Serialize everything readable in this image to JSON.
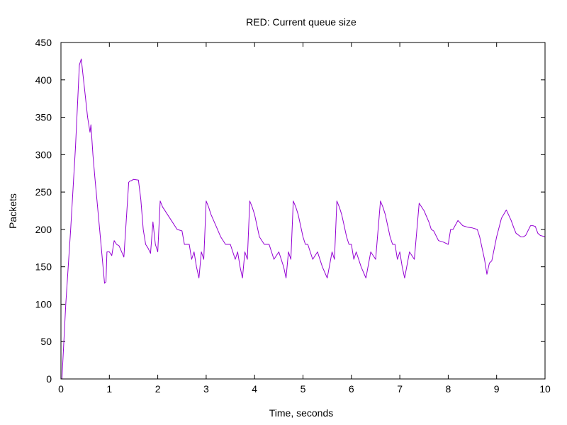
{
  "chart_data": {
    "type": "line",
    "title": "RED: Current queue size",
    "xlabel": "Time, seconds",
    "ylabel": "Packets",
    "xlim": [
      0,
      10
    ],
    "ylim": [
      0,
      450
    ],
    "x_ticks": [
      0,
      1,
      2,
      3,
      4,
      5,
      6,
      7,
      8,
      9,
      10
    ],
    "y_ticks": [
      0,
      50,
      100,
      150,
      200,
      250,
      300,
      350,
      400,
      450
    ],
    "grid": false,
    "legend": "none",
    "series": [
      {
        "color": "#9400d3",
        "x": [
          0.02,
          0.1,
          0.2,
          0.3,
          0.38,
          0.42,
          0.45,
          0.5,
          0.55,
          0.6,
          0.62,
          0.64,
          0.66,
          0.7,
          0.8,
          0.9,
          0.93,
          0.95,
          1.0,
          1.05,
          1.1,
          1.15,
          1.2,
          1.3,
          1.4,
          1.43,
          1.45,
          1.5,
          1.6,
          1.65,
          1.7,
          1.75,
          1.8,
          1.85,
          1.9,
          1.95,
          2.0,
          2.05,
          2.1,
          2.2,
          2.3,
          2.4,
          2.5,
          2.55,
          2.65,
          2.7,
          2.75,
          2.8,
          2.85,
          2.9,
          2.95,
          3.0,
          3.05,
          3.1,
          3.2,
          3.3,
          3.4,
          3.5,
          3.6,
          3.65,
          3.7,
          3.75,
          3.8,
          3.85,
          3.9,
          3.95,
          4.0,
          4.05,
          4.1,
          4.2,
          4.3,
          4.4,
          4.5,
          4.6,
          4.65,
          4.7,
          4.75,
          4.8,
          4.85,
          4.9,
          4.95,
          5.0,
          5.05,
          5.1,
          5.2,
          5.3,
          5.4,
          5.5,
          5.6,
          5.65,
          5.7,
          5.75,
          5.8,
          5.85,
          5.9,
          5.95,
          6.0,
          6.05,
          6.1,
          6.2,
          6.3,
          6.4,
          6.5,
          6.6,
          6.65,
          6.7,
          6.75,
          6.8,
          6.85,
          6.9,
          6.95,
          7.0,
          7.05,
          7.1,
          7.2,
          7.3,
          7.4,
          7.5,
          7.6,
          7.65,
          7.7,
          7.8,
          7.9,
          8.0,
          8.05,
          8.1,
          8.2,
          8.3,
          8.4,
          8.5,
          8.6,
          8.65,
          8.7,
          8.75,
          8.8,
          8.85,
          8.9,
          9.0,
          9.1,
          9.2,
          9.3,
          9.35,
          9.4,
          9.5,
          9.55,
          9.6,
          9.7,
          9.75,
          9.8,
          9.85,
          9.9,
          10.0
        ],
        "y": [
          0,
          100,
          200,
          310,
          420,
          428,
          410,
          380,
          350,
          330,
          340,
          320,
          300,
          270,
          200,
          128,
          130,
          170,
          170,
          165,
          185,
          180,
          178,
          163,
          263,
          265,
          265,
          267,
          266,
          240,
          200,
          180,
          175,
          168,
          210,
          180,
          170,
          238,
          230,
          220,
          210,
          200,
          198,
          180,
          180,
          160,
          170,
          150,
          135,
          170,
          160,
          238,
          230,
          220,
          205,
          190,
          180,
          180,
          160,
          170,
          150,
          135,
          170,
          160,
          238,
          230,
          220,
          205,
          190,
          180,
          180,
          160,
          170,
          150,
          135,
          170,
          160,
          238,
          230,
          220,
          205,
          190,
          180,
          180,
          160,
          170,
          150,
          135,
          170,
          160,
          238,
          230,
          220,
          205,
          190,
          180,
          180,
          160,
          170,
          150,
          135,
          170,
          160,
          238,
          230,
          220,
          205,
          190,
          180,
          180,
          160,
          170,
          150,
          135,
          170,
          160,
          235,
          225,
          210,
          200,
          198,
          185,
          183,
          180,
          200,
          200,
          212,
          205,
          203,
          202,
          200,
          190,
          175,
          160,
          140,
          155,
          158,
          190,
          215,
          226,
          212,
          203,
          195,
          190,
          190,
          192,
          205,
          205,
          204,
          195,
          192,
          190
        ]
      }
    ]
  }
}
